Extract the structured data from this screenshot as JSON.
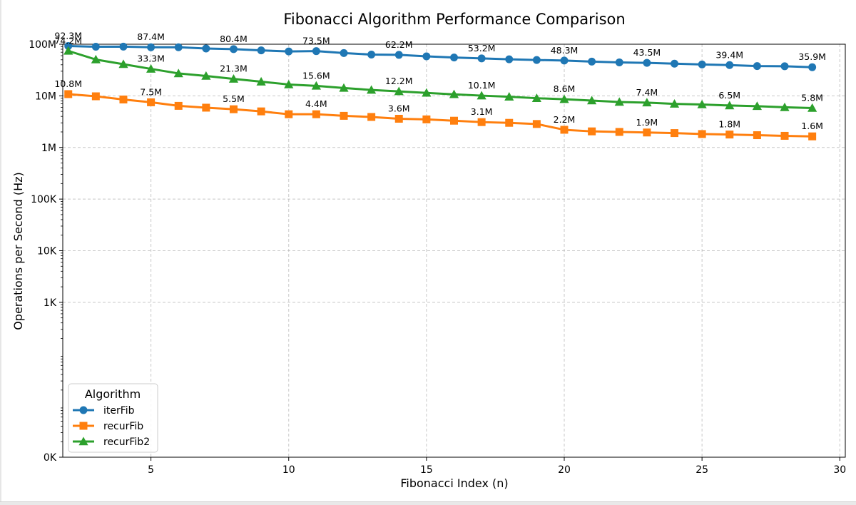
{
  "chart_data": {
    "type": "line",
    "title": "Fibonacci Algorithm Performance Comparison",
    "xlabel": "Fibonacci Index (n)",
    "ylabel": "Operations per Second (Hz)",
    "xlim": [
      1.8,
      30.2
    ],
    "ylim": [
      1,
      100000000
    ],
    "yscale": "log",
    "grid": true,
    "x_ticks": [
      5,
      10,
      15,
      20,
      25,
      30
    ],
    "y_ticks": [
      {
        "value": 1,
        "label": "0K"
      },
      {
        "value": 1000,
        "label": "1K"
      },
      {
        "value": 10000,
        "label": "10K"
      },
      {
        "value": 100000,
        "label": "100K"
      },
      {
        "value": 1000000,
        "label": "1M"
      },
      {
        "value": 10000000,
        "label": "10M"
      },
      {
        "value": 100000000,
        "label": "100M"
      }
    ],
    "legend": {
      "title": "Algorithm",
      "placement": "lower-left"
    },
    "x": [
      2,
      3,
      4,
      5,
      6,
      7,
      8,
      9,
      10,
      11,
      12,
      13,
      14,
      15,
      16,
      17,
      18,
      19,
      20,
      21,
      22,
      23,
      24,
      25,
      26,
      27,
      28,
      29
    ],
    "series": [
      {
        "name": "iterFib",
        "color": "#1f77b4",
        "marker": "circle",
        "values": [
          92300000,
          89500000,
          89700000,
          87400000,
          87400000,
          82500000,
          80400000,
          76000000,
          72500000,
          73500000,
          67500000,
          63000000,
          62200000,
          58300000,
          55300000,
          53200000,
          51000000,
          49500000,
          48300000,
          46000000,
          44500000,
          43500000,
          42000000,
          40500000,
          39400000,
          37800000,
          37500000,
          35900000
        ],
        "labels": [
          {
            "x": 2,
            "value": 92300000,
            "text": "92.3M"
          },
          {
            "x": 5,
            "value": 87400000,
            "text": "87.4M"
          },
          {
            "x": 8,
            "value": 80400000,
            "text": "80.4M"
          },
          {
            "x": 11,
            "value": 73500000,
            "text": "73.5M"
          },
          {
            "x": 14,
            "value": 62200000,
            "text": "62.2M"
          },
          {
            "x": 17,
            "value": 53200000,
            "text": "53.2M"
          },
          {
            "x": 20,
            "value": 48300000,
            "text": "48.3M"
          },
          {
            "x": 23,
            "value": 43500000,
            "text": "43.5M"
          },
          {
            "x": 26,
            "value": 39400000,
            "text": "39.4M"
          },
          {
            "x": 29,
            "value": 35900000,
            "text": "35.9M"
          }
        ]
      },
      {
        "name": "recurFib",
        "color": "#ff7f0e",
        "marker": "square",
        "values": [
          10800000,
          9800000,
          8500000,
          7500000,
          6400000,
          5900000,
          5500000,
          5000000,
          4400000,
          4400000,
          4100000,
          3900000,
          3600000,
          3500000,
          3300000,
          3100000,
          3000000,
          2850000,
          2200000,
          2050000,
          2000000,
          1950000,
          1900000,
          1820000,
          1780000,
          1730000,
          1680000,
          1640000
        ],
        "labels": [
          {
            "x": 2,
            "value": 10800000,
            "text": "10.8M"
          },
          {
            "x": 5,
            "value": 7500000,
            "text": "7.5M"
          },
          {
            "x": 8,
            "value": 5500000,
            "text": "5.5M"
          },
          {
            "x": 11,
            "value": 4400000,
            "text": "4.4M"
          },
          {
            "x": 14,
            "value": 3600000,
            "text": "3.6M"
          },
          {
            "x": 17,
            "value": 3100000,
            "text": "3.1M"
          },
          {
            "x": 20,
            "value": 2200000,
            "text": "2.2M"
          },
          {
            "x": 23,
            "value": 1950000,
            "text": "1.9M"
          },
          {
            "x": 26,
            "value": 1780000,
            "text": "1.8M"
          },
          {
            "x": 29,
            "value": 1640000,
            "text": "1.6M"
          }
        ]
      },
      {
        "name": "recurFib2",
        "color": "#2ca02c",
        "marker": "triangle",
        "values": [
          74200000,
          50500000,
          41000000,
          33300000,
          27200000,
          24300000,
          21300000,
          18800000,
          16600000,
          15600000,
          14200000,
          13000000,
          12200000,
          11400000,
          10700000,
          10100000,
          9600000,
          9000000,
          8600000,
          8100000,
          7600000,
          7400000,
          7000000,
          6800000,
          6500000,
          6300000,
          6000000,
          5800000
        ],
        "labels": [
          {
            "x": 2,
            "value": 74200000,
            "text": "74.2M"
          },
          {
            "x": 5,
            "value": 33300000,
            "text": "33.3M"
          },
          {
            "x": 8,
            "value": 21300000,
            "text": "21.3M"
          },
          {
            "x": 11,
            "value": 15600000,
            "text": "15.6M"
          },
          {
            "x": 14,
            "value": 12200000,
            "text": "12.2M"
          },
          {
            "x": 17,
            "value": 10100000,
            "text": "10.1M"
          },
          {
            "x": 20,
            "value": 8600000,
            "text": "8.6M"
          },
          {
            "x": 23,
            "value": 7400000,
            "text": "7.4M"
          },
          {
            "x": 26,
            "value": 6500000,
            "text": "6.5M"
          },
          {
            "x": 29,
            "value": 5800000,
            "text": "5.8M"
          }
        ]
      }
    ]
  }
}
